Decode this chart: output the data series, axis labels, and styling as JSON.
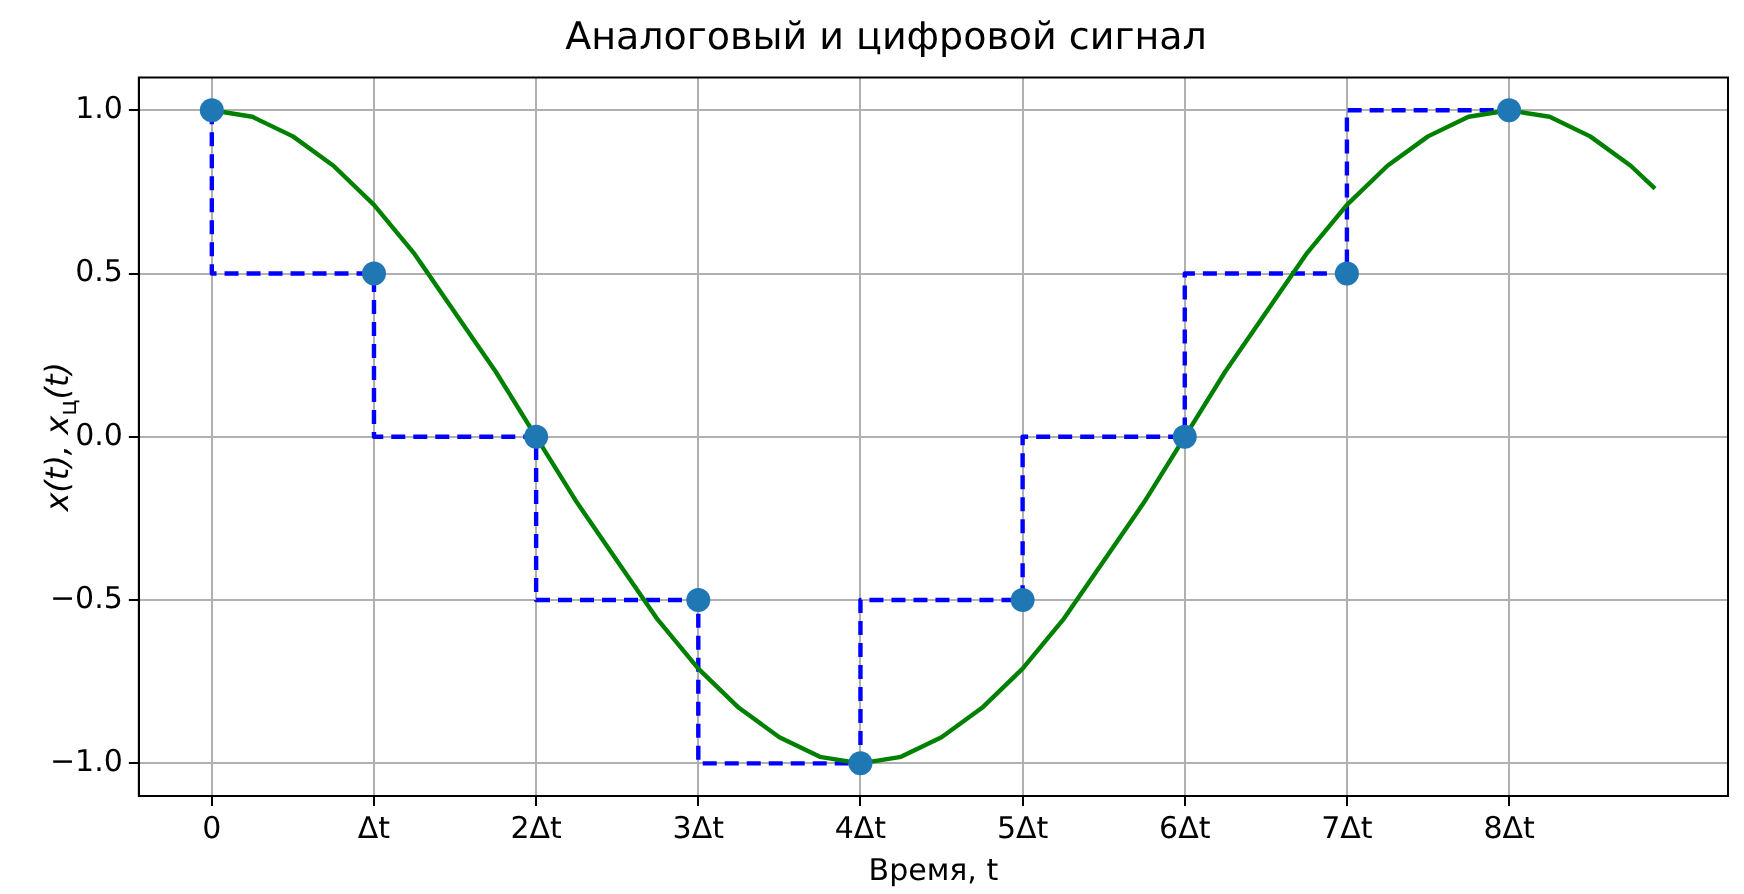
{
  "chart_data": {
    "type": "line",
    "title": "Аналоговый и цифровой сигнал",
    "xlabel": "Время, t",
    "ylabel": "x(t), x$_{ц}$(t)",
    "xlim": [
      -0.45,
      9.35
    ],
    "ylim": [
      -1.1,
      1.1
    ],
    "xticks": [
      0,
      {
        "value": 1,
        "label": "Δt"
      },
      {
        "value": 2,
        "label": "2Δt"
      },
      {
        "value": 3,
        "label": "3Δt"
      },
      {
        "value": 4,
        "label": "4Δt"
      },
      {
        "value": 5,
        "label": "5Δt"
      },
      {
        "value": 6,
        "label": "6Δt"
      },
      {
        "value": 7,
        "label": "7Δt"
      },
      {
        "value": 8,
        "label": "8Δt"
      }
    ],
    "yticks": [
      {
        "value": -1,
        "label": "−1.0"
      },
      {
        "value": -0.5,
        "label": "−0.5"
      },
      {
        "value": 0,
        "label": "0.0"
      },
      {
        "value": 0.5,
        "label": "0.5"
      },
      {
        "value": 1,
        "label": "1.0"
      }
    ],
    "grid": true,
    "legend": false,
    "series": [
      {
        "type": "line",
        "color": "#008000",
        "marker": "none",
        "line_style": "solid",
        "x": [
          0,
          0.25,
          0.5,
          0.75,
          1,
          1.25,
          1.5,
          1.75,
          2,
          2.25,
          2.5,
          2.75,
          3,
          3.25,
          3.5,
          3.75,
          4,
          4.25,
          4.5,
          4.75,
          5,
          5.25,
          5.5,
          5.75,
          6,
          6.25,
          6.5,
          6.75,
          7,
          7.25,
          7.5,
          7.75,
          8,
          8.25,
          8.5,
          8.75,
          8.9
        ],
        "values": [
          1,
          0.98,
          0.92,
          0.83,
          0.71,
          0.56,
          0.38,
          0.2,
          0,
          -0.2,
          -0.38,
          -0.56,
          -0.71,
          -0.83,
          -0.92,
          -0.98,
          -1,
          -0.98,
          -0.92,
          -0.83,
          -0.71,
          -0.56,
          -0.38,
          -0.2,
          0,
          0.2,
          0.38,
          0.56,
          0.71,
          0.83,
          0.92,
          0.98,
          1,
          0.98,
          0.92,
          0.83,
          0.76
        ]
      },
      {
        "type": "step",
        "color": "#0000ff",
        "marker": "none",
        "line_style": "dashed",
        "x": [
          0,
          1,
          2,
          3,
          4,
          5,
          6,
          7,
          8
        ],
        "values": [
          1,
          0.5,
          0,
          -0.5,
          -1,
          -0.5,
          0,
          0.5,
          1
        ]
      },
      {
        "type": "scatter",
        "color": "#1f77b4",
        "marker": "circle",
        "x": [
          0,
          1,
          2,
          3,
          4,
          5,
          6,
          7,
          8
        ],
        "values": [
          1,
          0.5,
          0,
          -0.5,
          -1,
          -0.5,
          0,
          0.5,
          1
        ]
      }
    ]
  }
}
